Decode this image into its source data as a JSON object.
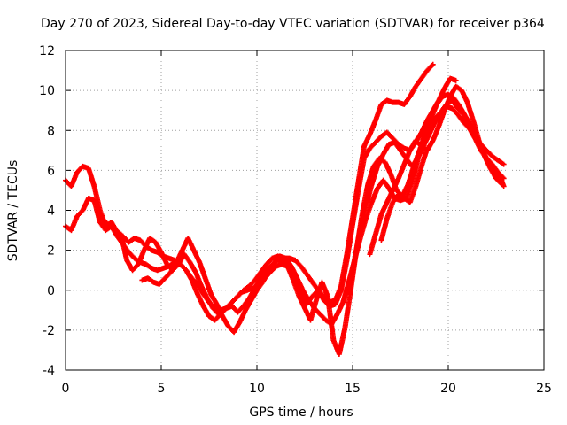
{
  "chart_data": {
    "type": "scatter",
    "title": "Day 270 of 2023, Sidereal Day-to-day VTEC variation (SDTVAR) for receiver p364",
    "xlabel": "GPS time / hours",
    "ylabel": "SDTVAR / TECUs",
    "xlim": [
      0,
      25
    ],
    "ylim": [
      -4,
      12
    ],
    "xticks": [
      0,
      5,
      10,
      15,
      20,
      25
    ],
    "yticks": [
      -4,
      -2,
      0,
      2,
      4,
      6,
      8,
      10,
      12
    ],
    "grid": true,
    "marker": "+",
    "series_color": "#ff0000",
    "series": [
      {
        "x": [
          0.0,
          0.3,
          0.6,
          0.9,
          1.2,
          1.5,
          1.8,
          2.1,
          2.4,
          2.7,
          3.0,
          3.3,
          3.6,
          3.9,
          4.2,
          4.5,
          4.8,
          5.1,
          5.4,
          5.7,
          6.0,
          6.3,
          6.6,
          6.9,
          7.2,
          7.5,
          7.8,
          8.1,
          8.4,
          8.7,
          9.0,
          9.3,
          9.6,
          9.9,
          10.2,
          10.5,
          10.8,
          11.1,
          11.4,
          11.7,
          12.0,
          12.3,
          12.6,
          12.9,
          13.2,
          13.5,
          13.8,
          14.1,
          14.4,
          14.7,
          15.0,
          15.3,
          15.6,
          15.9,
          16.2,
          16.5,
          16.8,
          17.1,
          17.4,
          17.7,
          18.0,
          18.3,
          18.6,
          18.9,
          19.2
        ],
        "y": [
          5.5,
          5.2,
          5.9,
          6.2,
          6.1,
          5.2,
          4.0,
          3.2,
          3.4,
          2.9,
          2.7,
          2.4,
          2.6,
          2.5,
          2.2,
          2.0,
          1.9,
          1.7,
          1.6,
          1.5,
          1.3,
          1.0,
          0.6,
          0.3,
          -0.2,
          -0.6,
          -0.9,
          -1.0,
          -0.9,
          -0.6,
          -0.3,
          0.0,
          0.2,
          0.5,
          0.9,
          1.3,
          1.6,
          1.7,
          1.6,
          1.6,
          1.5,
          1.2,
          0.8,
          0.4,
          0.0,
          -0.3,
          -0.6,
          -0.5,
          0.2,
          1.8,
          3.6,
          5.4,
          7.2,
          7.8,
          8.5,
          9.3,
          9.5,
          9.4,
          9.4,
          9.3,
          9.7,
          10.2,
          10.6,
          11.0,
          11.3
        ]
      },
      {
        "x": [
          0.0,
          0.3,
          0.6,
          0.9,
          1.2,
          1.5,
          1.8,
          2.1,
          2.4,
          2.7,
          3.0,
          3.3,
          3.6,
          3.9,
          4.2,
          4.5,
          4.8,
          5.1,
          5.4,
          5.7,
          6.0,
          6.3,
          6.6,
          6.9,
          7.2,
          7.5,
          7.8,
          8.1,
          8.4,
          8.7,
          9.0,
          9.3,
          9.6,
          9.9,
          10.2,
          10.5,
          10.8,
          11.1,
          11.4,
          11.7,
          12.0,
          12.3,
          12.6,
          12.9,
          13.2,
          13.5,
          13.8,
          14.1,
          14.4,
          14.7,
          15.0,
          15.3,
          15.6,
          15.9,
          16.2,
          16.5,
          16.8,
          17.1,
          17.4,
          17.7,
          18.0,
          18.3,
          18.6,
          18.9,
          19.2,
          19.5,
          19.8,
          20.1,
          20.4
        ],
        "y": [
          3.2,
          3.0,
          3.7,
          4.0,
          4.6,
          4.5,
          3.4,
          3.0,
          3.2,
          2.7,
          2.3,
          1.9,
          1.6,
          1.4,
          1.3,
          1.1,
          1.0,
          1.1,
          1.2,
          1.4,
          1.3,
          1.0,
          0.5,
          -0.2,
          -0.8,
          -1.3,
          -1.5,
          -1.2,
          -0.9,
          -0.8,
          -1.1,
          -0.8,
          -0.4,
          0.1,
          0.6,
          1.0,
          1.3,
          1.5,
          1.4,
          1.2,
          0.6,
          -0.2,
          -0.7,
          -0.3,
          0.0,
          -0.5,
          -0.8,
          -0.7,
          0.0,
          1.5,
          3.3,
          5.0,
          6.6,
          7.1,
          7.4,
          7.7,
          7.9,
          7.6,
          7.3,
          7.1,
          7.0,
          7.4,
          7.9,
          8.5,
          9.0,
          9.5,
          10.1,
          10.6,
          10.5
        ]
      },
      {
        "x": [
          2.0,
          2.3,
          2.6,
          2.9,
          3.2,
          3.5,
          3.8,
          4.1,
          4.4,
          4.7,
          5.0,
          5.3,
          5.6,
          5.9,
          6.2,
          6.5,
          6.8,
          7.1,
          7.4,
          7.7,
          8.0,
          8.3,
          8.6,
          8.9,
          9.2,
          9.5,
          9.8,
          10.1,
          10.4,
          10.7,
          11.0,
          11.3,
          11.6,
          11.9,
          12.2,
          12.5,
          12.8,
          13.1,
          13.4,
          13.7,
          14.0,
          14.3,
          14.6,
          14.9,
          15.2,
          15.5,
          15.8,
          16.1,
          16.4,
          16.7,
          17.0,
          17.3,
          17.6,
          17.9,
          18.2,
          18.5,
          18.8,
          19.1,
          19.4,
          19.7,
          20.0,
          20.3,
          20.6,
          20.9,
          21.2,
          21.5,
          21.8,
          22.1,
          22.4,
          22.7,
          22.9
        ],
        "y": [
          3.5,
          3.2,
          3.0,
          2.8,
          1.5,
          1.0,
          1.3,
          2.0,
          2.6,
          2.4,
          1.9,
          1.3,
          1.0,
          1.3,
          1.8,
          1.4,
          0.9,
          0.2,
          -0.4,
          -0.9,
          -1.2,
          -1.0,
          -0.7,
          -0.4,
          -0.1,
          0.0,
          0.1,
          0.3,
          0.6,
          0.9,
          1.2,
          1.3,
          1.2,
          0.5,
          -0.3,
          -0.9,
          -1.5,
          -0.5,
          0.4,
          -0.3,
          -2.5,
          -3.2,
          -1.9,
          0.0,
          2.0,
          3.8,
          5.3,
          6.2,
          6.6,
          6.4,
          5.8,
          5.0,
          4.7,
          5.3,
          6.2,
          7.0,
          7.8,
          8.6,
          9.3,
          9.7,
          9.8,
          9.6,
          9.2,
          8.7,
          8.2,
          7.6,
          7.0,
          6.4,
          6.0,
          5.7,
          5.2
        ]
      },
      {
        "x": [
          4.0,
          4.3,
          4.6,
          4.9,
          5.2,
          5.5,
          5.8,
          6.1,
          6.4,
          6.7,
          7.0,
          7.3,
          7.6,
          7.9,
          8.2,
          8.5,
          8.8,
          9.1,
          9.4,
          9.7,
          10.0,
          10.3,
          10.6,
          10.9,
          11.2,
          11.5,
          11.8,
          12.1,
          12.4,
          12.7,
          13.0,
          13.3,
          13.6,
          13.9,
          14.2,
          14.5,
          14.8,
          15.1,
          15.4,
          15.7,
          16.0,
          16.3,
          16.6,
          16.9,
          17.2,
          17.5,
          17.8,
          18.1,
          18.4,
          18.7,
          19.0,
          19.3,
          19.6,
          19.9,
          20.2,
          20.5,
          20.8,
          21.1,
          21.4,
          21.7,
          22.0,
          22.3,
          22.6,
          22.9
        ],
        "y": [
          0.5,
          0.6,
          0.4,
          0.3,
          0.6,
          0.9,
          1.4,
          2.0,
          2.6,
          2.0,
          1.4,
          0.6,
          -0.2,
          -0.7,
          -1.3,
          -1.8,
          -2.1,
          -1.6,
          -1.0,
          -0.5,
          0.0,
          0.4,
          0.9,
          1.4,
          1.7,
          1.6,
          1.2,
          0.6,
          0.0,
          -0.5,
          -0.9,
          -1.2,
          -1.5,
          -1.7,
          -1.2,
          -0.6,
          0.4,
          1.5,
          2.6,
          3.6,
          4.4,
          5.1,
          5.5,
          5.1,
          4.6,
          4.5,
          4.6,
          5.4,
          6.5,
          7.6,
          8.3,
          8.6,
          8.9,
          9.2,
          9.1,
          8.8,
          8.4,
          8.1,
          7.6,
          7.0,
          6.6,
          6.3,
          5.9,
          5.6
        ]
      },
      {
        "x": [
          14.8,
          15.1,
          15.4,
          15.7,
          16.0,
          16.3,
          16.6,
          16.9,
          17.2,
          17.5,
          17.8,
          18.1,
          18.4,
          18.7,
          19.0,
          19.3,
          19.6,
          19.9,
          20.2,
          20.5,
          20.8,
          21.1,
          21.4,
          21.7,
          22.0,
          22.3,
          22.6,
          22.9
        ],
        "y": [
          0.0,
          1.5,
          3.0,
          4.2,
          5.3,
          6.2,
          6.8,
          7.3,
          7.4,
          7.0,
          6.6,
          6.2,
          6.6,
          7.2,
          7.8,
          8.4,
          8.9,
          9.3,
          9.5,
          9.1,
          8.8,
          8.2,
          7.7,
          7.3,
          7.0,
          6.7,
          6.5,
          6.3
        ]
      },
      {
        "x": [
          15.9,
          16.2,
          16.5,
          16.8,
          17.1,
          17.4,
          17.7,
          18.0,
          18.3,
          18.6,
          18.9,
          19.2,
          19.5,
          19.8,
          20.1,
          20.4,
          20.7,
          21.0,
          21.3,
          21.6,
          21.9,
          22.2,
          22.5,
          22.8
        ],
        "y": [
          1.8,
          2.8,
          3.8,
          4.4,
          5.0,
          5.6,
          6.3,
          7.0,
          7.5,
          7.2,
          7.0,
          7.5,
          8.2,
          9.0,
          9.7,
          10.2,
          10.0,
          9.4,
          8.5,
          7.5,
          6.7,
          6.1,
          5.6,
          5.3
        ]
      },
      {
        "x": [
          16.5,
          16.8,
          17.1,
          17.4,
          17.7,
          18.0,
          18.3,
          18.6,
          18.9
        ],
        "y": [
          2.5,
          3.6,
          4.4,
          4.8,
          4.6,
          4.4,
          5.2,
          6.2,
          7.1
        ]
      }
    ]
  }
}
